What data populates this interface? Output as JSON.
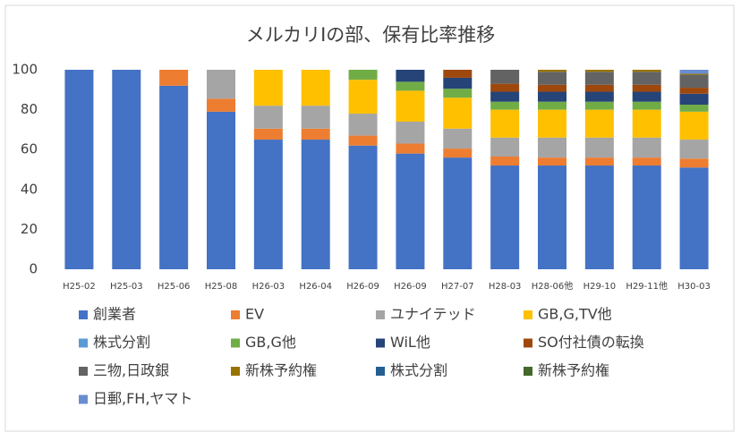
{
  "chart_data": {
    "type": "stacked_bar",
    "title": "メルカリIの部、保有比率推移",
    "categories": [
      "H25-02",
      "H25-03",
      "H25-06",
      "H25-08",
      "H26-03",
      "H26-04",
      "H26-09",
      "H26-09",
      "H27-07",
      "H28-03",
      "H28-06他",
      "H29-10",
      "H29-11他",
      "H30-03"
    ],
    "series": [
      {
        "name": "創業者",
        "color": "#4472c4",
        "values": [
          100,
          100,
          92,
          79,
          65,
          65,
          62,
          58,
          56,
          52,
          52,
          52,
          52,
          51
        ]
      },
      {
        "name": "EV",
        "color": "#ed7d31",
        "values": [
          0,
          0,
          8,
          6.5,
          5.5,
          5.5,
          5,
          5,
          4.5,
          4.5,
          4,
          4,
          4,
          4.5
        ]
      },
      {
        "name": "ユナイテッド",
        "color": "#a5a5a5",
        "values": [
          0,
          0,
          0,
          14.5,
          11.5,
          11.5,
          11,
          11,
          10,
          9.5,
          10,
          10,
          10,
          9.5
        ]
      },
      {
        "name": "GB,G,TV他",
        "color": "#ffc000",
        "values": [
          0,
          0,
          0,
          0,
          18,
          18,
          17,
          15.5,
          15.5,
          14,
          14,
          14,
          14,
          14
        ]
      },
      {
        "name": "株式分割",
        "color": "#5b9bd5",
        "values": [
          0,
          0,
          0,
          0,
          0,
          0,
          0,
          0,
          0,
          0,
          0,
          0,
          0,
          0
        ]
      },
      {
        "name": "GB,G他",
        "color": "#70ad47",
        "values": [
          0,
          0,
          0,
          0,
          0,
          0,
          5,
          4.5,
          4.5,
          4,
          4,
          4,
          4,
          3.5
        ]
      },
      {
        "name": "WiL他",
        "color": "#264478",
        "values": [
          0,
          0,
          0,
          0,
          0,
          0,
          0,
          6,
          5.5,
          5,
          5,
          5,
          5,
          5.5
        ]
      },
      {
        "name": "SO付社債の転換",
        "color": "#9e480e",
        "values": [
          0,
          0,
          0,
          0,
          0,
          0,
          0,
          0,
          4,
          4,
          3.5,
          3.5,
          3.5,
          3
        ]
      },
      {
        "name": "三物,日政銀",
        "color": "#636363",
        "values": [
          0,
          0,
          0,
          0,
          0,
          0,
          0,
          0,
          0,
          7,
          6.5,
          6.5,
          6.5,
          6.5
        ]
      },
      {
        "name": "新株予約権",
        "color": "#997300",
        "values": [
          0,
          0,
          0,
          0,
          0,
          0,
          0,
          0,
          0,
          0,
          1,
          1,
          1,
          0.5
        ]
      },
      {
        "name": "株式分割",
        "color": "#255e91",
        "values": [
          0,
          0,
          0,
          0,
          0,
          0,
          0,
          0,
          0,
          0,
          0,
          0,
          0,
          0
        ]
      },
      {
        "name": "新株予約権",
        "color": "#43682b",
        "values": [
          0,
          0,
          0,
          0,
          0,
          0,
          0,
          0,
          0,
          0,
          0,
          0,
          0,
          0
        ]
      },
      {
        "name": "日郵,FH,ヤマト",
        "color": "#698ed0",
        "values": [
          0,
          0,
          0,
          0,
          0,
          0,
          0,
          0,
          0,
          0,
          0,
          0,
          0,
          2
        ]
      }
    ],
    "ylim": [
      0,
      100
    ],
    "yticks": [
      0,
      20,
      40,
      60,
      80,
      100
    ],
    "grid": false
  }
}
